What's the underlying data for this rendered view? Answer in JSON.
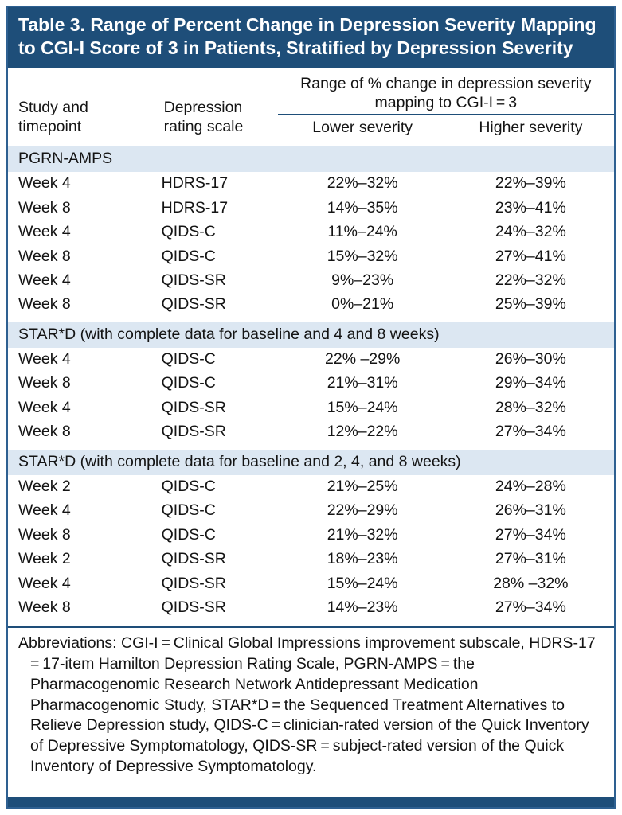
{
  "colors": {
    "title_bg": "#1E4E79",
    "band_bg": "#DCE7F2",
    "frame_border": "#2E6091",
    "rule": "#1E4E79"
  },
  "title": "Table 3. Range of Percent Change in Depression Severity Mapping to CGI-I Score of 3 in Patients, Stratified by Depression Severity",
  "table": {
    "columns": {
      "study": "Study and timepoint",
      "scale": "Depression rating scale",
      "span": "Range of % change in depression severity mapping to CGI-I = 3",
      "lower": "Lower severity",
      "higher": "Higher severity"
    },
    "sections": [
      {
        "header": "PGRN-AMPS",
        "rows": [
          [
            "Week 4",
            "HDRS-17",
            "22%–32%",
            "22%–39%"
          ],
          [
            "Week 8",
            "HDRS-17",
            "14%–35%",
            "23%–41%"
          ],
          [
            "Week 4",
            "QIDS-C",
            "11%–24%",
            "24%–32%"
          ],
          [
            "Week 8",
            "QIDS-C",
            "15%–32%",
            "27%–41%"
          ],
          [
            "Week 4",
            "QIDS-SR",
            "9%–23%",
            "22%–32%"
          ],
          [
            "Week 8",
            "QIDS-SR",
            "0%–21%",
            "25%–39%"
          ]
        ]
      },
      {
        "header": "STAR*D (with complete data for baseline and 4 and 8 weeks)",
        "rows": [
          [
            "Week 4",
            "QIDS-C",
            "22% –29%",
            "26%–30%"
          ],
          [
            "Week 8",
            "QIDS-C",
            "21%–31%",
            "29%–34%"
          ],
          [
            "Week 4",
            "QIDS-SR",
            "15%–24%",
            "28%–32%"
          ],
          [
            "Week 8",
            "QIDS-SR",
            "12%–22%",
            "27%–34%"
          ]
        ]
      },
      {
        "header": "STAR*D (with complete data for baseline and 2, 4, and 8 weeks)",
        "rows": [
          [
            "Week 2",
            "QIDS-C",
            "21%–25%",
            "24%–28%"
          ],
          [
            "Week 4",
            "QIDS-C",
            "22%–29%",
            "26%–31%"
          ],
          [
            "Week 8",
            "QIDS-C",
            "21%–32%",
            "27%–34%"
          ],
          [
            "Week 2",
            "QIDS-SR",
            "18%–23%",
            "27%–31%"
          ],
          [
            "Week 4",
            "QIDS-SR",
            "15%–24%",
            "28% –32%"
          ],
          [
            "Week 8",
            "QIDS-SR",
            "14%–23%",
            "27%–34%"
          ]
        ]
      }
    ]
  },
  "footnote": "Abbreviations: CGI-I = Clinical Global Impressions improvement subscale, HDRS-17 = 17-item Hamilton Depression Rating Scale, PGRN-AMPS = the Pharmacogenomic Research Network Antidepressant Medication Pharmacogenomic Study, STAR*D = the Sequenced Treatment Alternatives to Relieve Depression study, QIDS-C = clinician-rated version of the Quick Inventory of Depressive Symptomatology, QIDS-SR = subject-rated version of the Quick Inventory of Depressive Symptomatology."
}
